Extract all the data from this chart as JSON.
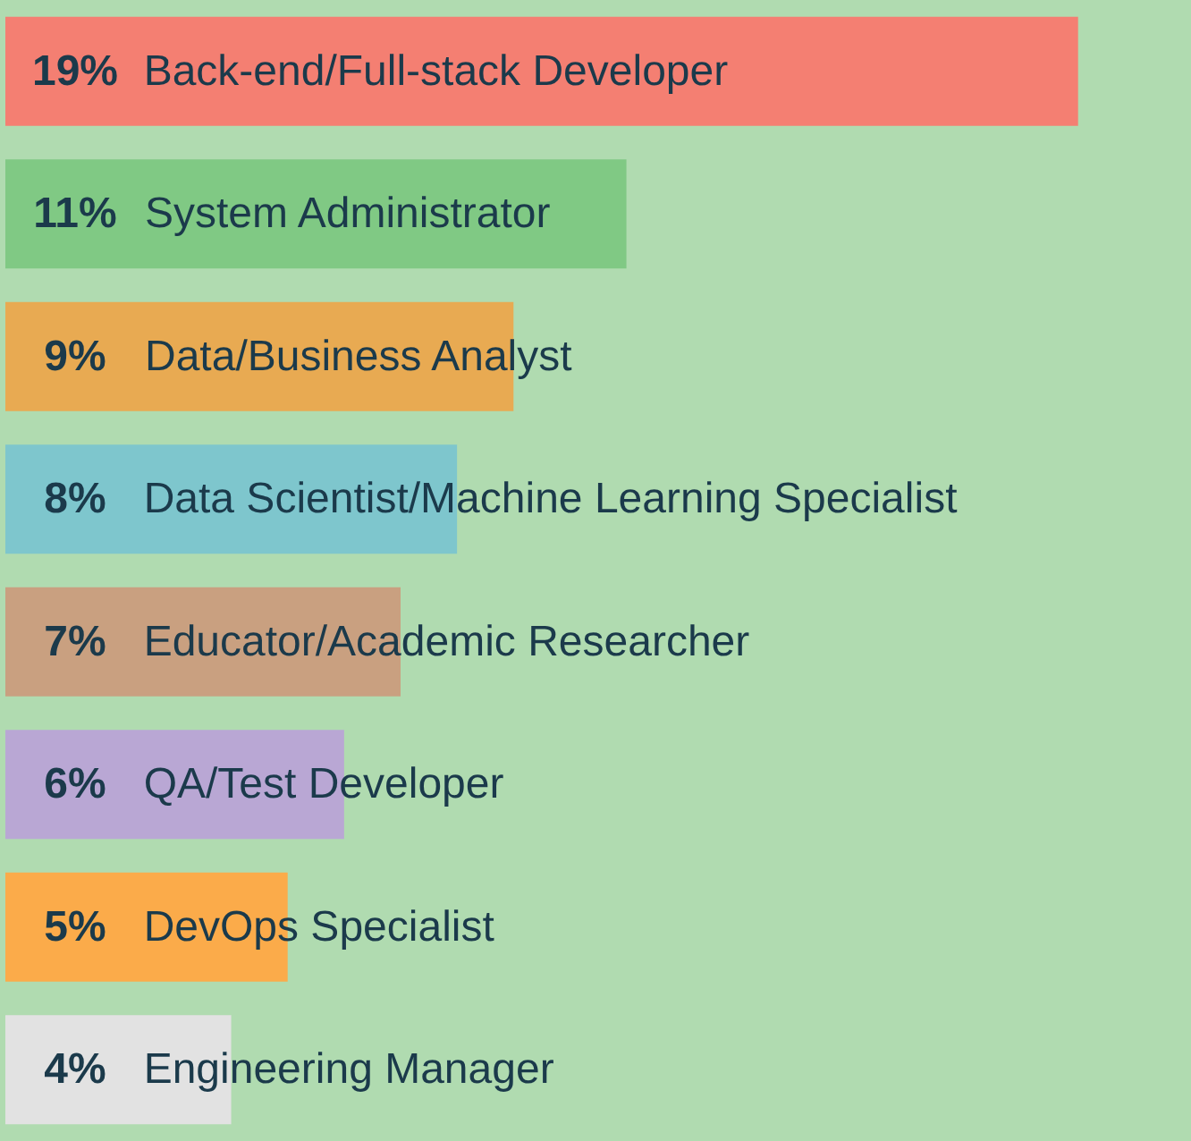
{
  "chart_data": {
    "type": "bar",
    "orientation": "horizontal",
    "categories": [
      "Back-end/Full-stack Developer",
      "System Administrator",
      "Data/Business Analyst",
      "Data Scientist/Machine Learning Specialist",
      "Educator/Academic Researcher",
      "QA/Test Developer",
      "DevOps Specialist",
      "Engineering Manager"
    ],
    "values": [
      19,
      11,
      9,
      8,
      7,
      6,
      5,
      4
    ],
    "value_labels": [
      "19%",
      "11%",
      "9%",
      "8%",
      "7%",
      "6%",
      "5%",
      "4%"
    ],
    "colors": [
      "#f47f72",
      "#80c984",
      "#e8aa52",
      "#7ec6cd",
      "#c9a080",
      "#b9a7d4",
      "#fbab4a",
      "#e2e2e2"
    ]
  }
}
